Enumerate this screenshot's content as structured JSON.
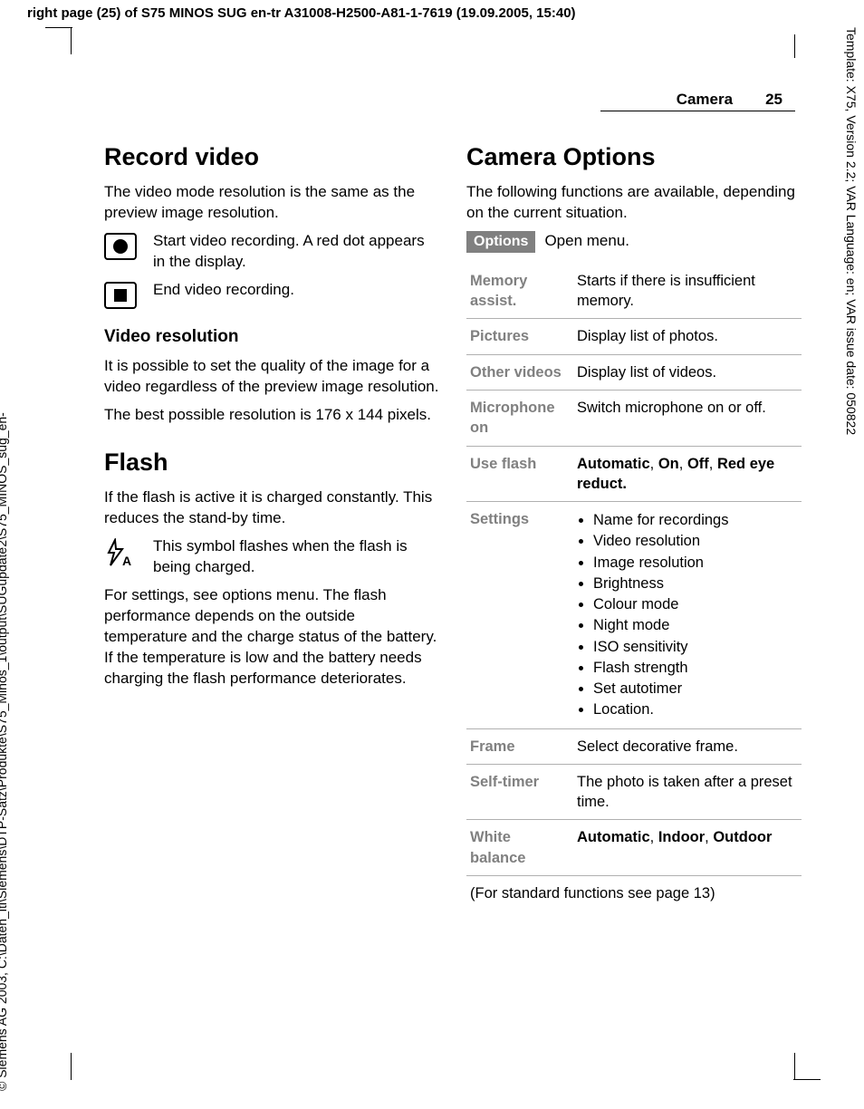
{
  "meta": {
    "top_banner": "right page (25) of S75 MINOS SUG en-tr A31008-H2500-A81-1-7619 (19.09.2005, 15:40)",
    "side_left": "© Siemens AG 2003, C:\\Daten_itl\\Siemens\\DTP-Satz\\Produkte\\S75_Minos_1\\output\\SUGupdate2\\S75_MINOS_sug_en-",
    "side_right": "Template: X75, Version 2.2; VAR Language: en; VAR issue date: 050822",
    "section": "Camera",
    "page_number": "25"
  },
  "left": {
    "h2_record": "Record video",
    "p_record_intro": "The video mode resolution is the same as the preview image resolution.",
    "start_rec": "Start video recording. A red dot appears in the display.",
    "end_rec": "End video recording.",
    "h3_vidres": "Video resolution",
    "p_vidres_1": "It is possible to set the quality of the image for a video regardless of the preview image resolution.",
    "p_vidres_2": "The best possible resolution is 176 x 144 pixels.",
    "h2_flash": "Flash",
    "p_flash_1": "If the flash is active it is charged constantly. This reduces the stand-by time.",
    "flash_symbol": "This symbol flashes when the flash is being charged.",
    "p_flash_2": "For settings, see options menu. The flash performance depends on the outside temperature and the charge status of the battery. If the temperature is low and the battery needs charging the flash performance deteriorates."
  },
  "right": {
    "h2_options": "Camera Options",
    "p_options_intro": "The following functions are available, depending on the current situation.",
    "options_tag": "Options",
    "options_open": "Open menu.",
    "table": [
      {
        "label": "Memory assist.",
        "desc": "Starts if there is insufficient memory."
      },
      {
        "label": "Pictures",
        "desc": "Display list of photos."
      },
      {
        "label": "Other videos",
        "desc": "Display list of videos."
      },
      {
        "label": "Microphone on",
        "desc": "Switch microphone on or off."
      },
      {
        "label": "Use flash",
        "bold": "Automatic, On, Off, Red eye reduct."
      },
      {
        "label": "Settings",
        "list": [
          "Name for recordings",
          "Video resolution",
          "Image resolution",
          "Brightness",
          "Colour mode",
          "Night mode",
          "ISO sensitivity",
          "Flash strength",
          "Set autotimer",
          "Location."
        ]
      },
      {
        "label": "Frame",
        "desc": "Select decorative frame."
      },
      {
        "label": "Self-timer",
        "desc": "The photo is taken after a preset time."
      },
      {
        "label": "White balance",
        "bold": "Automatic, Indoor, Outdoor"
      }
    ],
    "footnote": "(For standard functions see page 13)"
  }
}
